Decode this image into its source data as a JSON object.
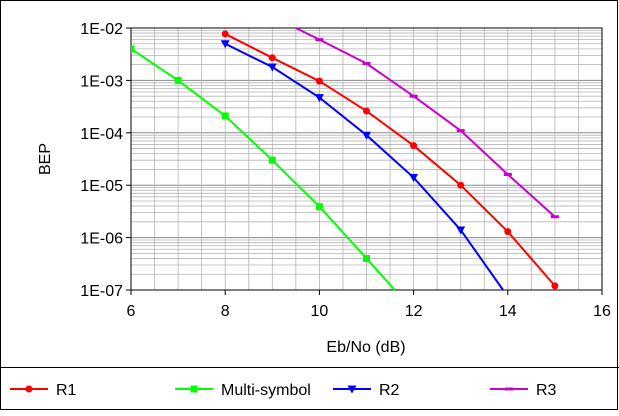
{
  "chart_data": {
    "type": "line",
    "title": "",
    "xlabel": "Eb/No (dB)",
    "ylabel": "BEP",
    "xlim": [
      6,
      16
    ],
    "ylim": [
      1e-07,
      0.01
    ],
    "yscale": "log",
    "grid": true,
    "legend_position": "bottom",
    "x_ticks": [
      6,
      8,
      10,
      12,
      14,
      16
    ],
    "x_tick_labels": [
      "6",
      "8",
      "10",
      "12",
      "14",
      "16"
    ],
    "y_ticks": [
      0.01,
      0.001,
      0.0001,
      1e-05,
      1e-06,
      1e-07
    ],
    "y_tick_labels": [
      "1E-02",
      "1E-03",
      "1E-04",
      "1E-05",
      "1E-06",
      "1E-07"
    ],
    "series": [
      {
        "name": "R1",
        "color": "#ff0000",
        "marker": "circle",
        "x": [
          8,
          9,
          10,
          11,
          12,
          13,
          14,
          15
        ],
        "y": [
          0.0077,
          0.0027,
          0.00097,
          0.00026,
          5.7e-05,
          1e-05,
          1.3e-06,
          1.2e-07
        ]
      },
      {
        "name": "Multi-symbol",
        "color": "#00ff00",
        "marker": "square",
        "x": [
          6,
          7,
          8,
          9,
          10,
          11,
          11.6
        ],
        "y": [
          0.004,
          0.001,
          0.00021,
          3e-05,
          3.9e-06,
          4e-07,
          1e-07
        ]
      },
      {
        "name": "R2",
        "color": "#0000ff",
        "marker": "triangle-down",
        "x": [
          8,
          9,
          10,
          11,
          12,
          13,
          13.9
        ],
        "y": [
          0.005,
          0.0018,
          0.00047,
          9e-05,
          1.4e-05,
          1.4e-06,
          1e-07
        ]
      },
      {
        "name": "R3",
        "color": "#cc00cc",
        "marker": "dash",
        "x": [
          9.5,
          10,
          11,
          12,
          13,
          14,
          15
        ],
        "y": [
          0.01,
          0.006,
          0.0021,
          0.0005,
          0.00011,
          1.6e-05,
          2.5e-06
        ]
      }
    ]
  }
}
